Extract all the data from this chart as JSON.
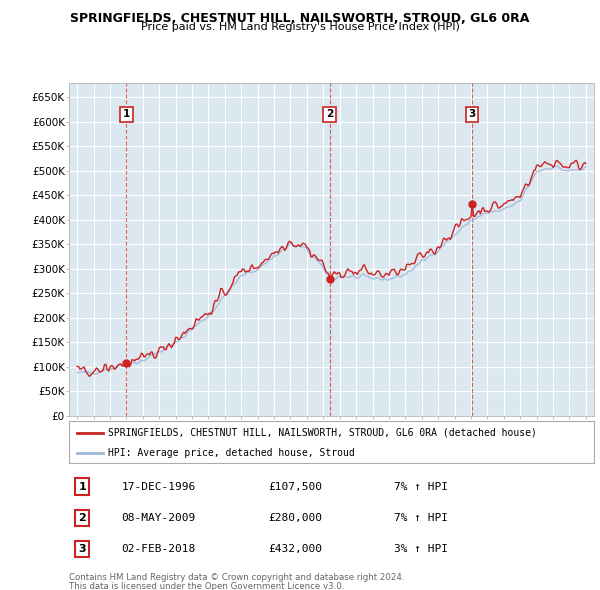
{
  "title": "SPRINGFIELDS, CHESTNUT HILL, NAILSWORTH, STROUD, GL6 0RA",
  "subtitle": "Price paid vs. HM Land Registry's House Price Index (HPI)",
  "legend_label_red": "SPRINGFIELDS, CHESTNUT HILL, NAILSWORTH, STROUD, GL6 0RA (detached house)",
  "legend_label_blue": "HPI: Average price, detached house, Stroud",
  "footer1": "Contains HM Land Registry data © Crown copyright and database right 2024.",
  "footer2": "This data is licensed under the Open Government Licence v3.0.",
  "transactions": [
    {
      "num": 1,
      "date": "17-DEC-1996",
      "price": "£107,500",
      "hpi": "7% ↑ HPI",
      "x": 1997.0
    },
    {
      "num": 2,
      "date": "08-MAY-2009",
      "price": "£280,000",
      "hpi": "7% ↑ HPI",
      "x": 2009.38
    },
    {
      "num": 3,
      "date": "02-FEB-2018",
      "price": "£432,000",
      "hpi": "3% ↑ HPI",
      "x": 2018.08
    }
  ],
  "ylim": [
    0,
    680000
  ],
  "yticks": [
    0,
    50000,
    100000,
    150000,
    200000,
    250000,
    300000,
    350000,
    400000,
    450000,
    500000,
    550000,
    600000,
    650000
  ],
  "ytick_labels": [
    "£0",
    "£50K",
    "£100K",
    "£150K",
    "£200K",
    "£250K",
    "£300K",
    "£350K",
    "£400K",
    "£450K",
    "£500K",
    "£550K",
    "£600K",
    "£650K"
  ],
  "xlim_start": 1993.5,
  "xlim_end": 2025.5,
  "hpi_color": "#a0b8d8",
  "price_color": "#cc2222",
  "dot_color": "#cc2222",
  "vline_color": "#cc2222",
  "grid_color": "#c8d8e8",
  "bg_color": "#ffffff",
  "chart_bg": "#dce8f0",
  "hpi_data_x": [
    1994.0,
    1994.08,
    1994.17,
    1994.25,
    1994.33,
    1994.42,
    1994.5,
    1994.58,
    1994.67,
    1994.75,
    1994.83,
    1994.92,
    1995.0,
    1995.08,
    1995.17,
    1995.25,
    1995.33,
    1995.42,
    1995.5,
    1995.58,
    1995.67,
    1995.75,
    1995.83,
    1995.92,
    1996.0,
    1996.08,
    1996.17,
    1996.25,
    1996.33,
    1996.42,
    1996.5,
    1996.58,
    1996.67,
    1996.75,
    1996.83,
    1996.92,
    1997.0,
    1997.08,
    1997.17,
    1997.25,
    1997.33,
    1997.42,
    1997.5,
    1997.58,
    1997.67,
    1997.75,
    1997.83,
    1997.92,
    1998.0,
    1998.08,
    1998.17,
    1998.25,
    1998.33,
    1998.42,
    1998.5,
    1998.58,
    1998.67,
    1998.75,
    1998.83,
    1998.92,
    1999.0,
    1999.08,
    1999.17,
    1999.25,
    1999.33,
    1999.42,
    1999.5,
    1999.58,
    1999.67,
    1999.75,
    1999.83,
    1999.92,
    2000.0,
    2000.08,
    2000.17,
    2000.25,
    2000.33,
    2000.42,
    2000.5,
    2000.58,
    2000.67,
    2000.75,
    2000.83,
    2000.92,
    2001.0,
    2001.08,
    2001.17,
    2001.25,
    2001.33,
    2001.42,
    2001.5,
    2001.58,
    2001.67,
    2001.75,
    2001.83,
    2001.92,
    2002.0,
    2002.08,
    2002.17,
    2002.25,
    2002.33,
    2002.42,
    2002.5,
    2002.58,
    2002.67,
    2002.75,
    2002.83,
    2002.92,
    2003.0,
    2003.08,
    2003.17,
    2003.25,
    2003.33,
    2003.42,
    2003.5,
    2003.58,
    2003.67,
    2003.75,
    2003.83,
    2003.92,
    2004.0,
    2004.08,
    2004.17,
    2004.25,
    2004.33,
    2004.42,
    2004.5,
    2004.58,
    2004.67,
    2004.75,
    2004.83,
    2004.92,
    2005.0,
    2005.08,
    2005.17,
    2005.25,
    2005.33,
    2005.42,
    2005.5,
    2005.58,
    2005.67,
    2005.75,
    2005.83,
    2005.92,
    2006.0,
    2006.08,
    2006.17,
    2006.25,
    2006.33,
    2006.42,
    2006.5,
    2006.58,
    2006.67,
    2006.75,
    2006.83,
    2006.92,
    2007.0,
    2007.08,
    2007.17,
    2007.25,
    2007.33,
    2007.42,
    2007.5,
    2007.58,
    2007.67,
    2007.75,
    2007.83,
    2007.92,
    2008.0,
    2008.08,
    2008.17,
    2008.25,
    2008.33,
    2008.42,
    2008.5,
    2008.58,
    2008.67,
    2008.75,
    2008.83,
    2008.92,
    2009.0,
    2009.08,
    2009.17,
    2009.25,
    2009.33,
    2009.42,
    2009.5,
    2009.58,
    2009.67,
    2009.75,
    2009.83,
    2009.92,
    2010.0,
    2010.08,
    2010.17,
    2010.25,
    2010.33,
    2010.42,
    2010.5,
    2010.58,
    2010.67,
    2010.75,
    2010.83,
    2010.92,
    2011.0,
    2011.08,
    2011.17,
    2011.25,
    2011.33,
    2011.42,
    2011.5,
    2011.58,
    2011.67,
    2011.75,
    2011.83,
    2011.92,
    2012.0,
    2012.08,
    2012.17,
    2012.25,
    2012.33,
    2012.42,
    2012.5,
    2012.58,
    2012.67,
    2012.75,
    2012.83,
    2012.92,
    2013.0,
    2013.08,
    2013.17,
    2013.25,
    2013.33,
    2013.42,
    2013.5,
    2013.58,
    2013.67,
    2013.75,
    2013.83,
    2013.92,
    2014.0,
    2014.08,
    2014.17,
    2014.25,
    2014.33,
    2014.42,
    2014.5,
    2014.58,
    2014.67,
    2014.75,
    2014.83,
    2014.92,
    2015.0,
    2015.08,
    2015.17,
    2015.25,
    2015.33,
    2015.42,
    2015.5,
    2015.58,
    2015.67,
    2015.75,
    2015.83,
    2015.92,
    2016.0,
    2016.08,
    2016.17,
    2016.25,
    2016.33,
    2016.42,
    2016.5,
    2016.58,
    2016.67,
    2016.75,
    2016.83,
    2016.92,
    2017.0,
    2017.08,
    2017.17,
    2017.25,
    2017.33,
    2017.42,
    2017.5,
    2017.58,
    2017.67,
    2017.75,
    2017.83,
    2017.92,
    2018.0,
    2018.08,
    2018.17,
    2018.25,
    2018.33,
    2018.42,
    2018.5,
    2018.58,
    2018.67,
    2018.75,
    2018.83,
    2018.92,
    2019.0,
    2019.08,
    2019.17,
    2019.25,
    2019.33,
    2019.42,
    2019.5,
    2019.58,
    2019.67,
    2019.75,
    2019.83,
    2019.92,
    2020.0,
    2020.08,
    2020.17,
    2020.25,
    2020.33,
    2020.42,
    2020.5,
    2020.58,
    2020.67,
    2020.75,
    2020.83,
    2020.92,
    2021.0,
    2021.08,
    2021.17,
    2021.25,
    2021.33,
    2021.42,
    2021.5,
    2021.58,
    2021.67,
    2021.75,
    2021.83,
    2021.92,
    2022.0,
    2022.08,
    2022.17,
    2022.25,
    2022.33,
    2022.42,
    2022.5,
    2022.58,
    2022.67,
    2022.75,
    2022.83,
    2022.92,
    2023.0,
    2023.08,
    2023.17,
    2023.25,
    2023.33,
    2023.42,
    2023.5,
    2023.58,
    2023.67,
    2023.75,
    2023.83,
    2023.92,
    2024.0,
    2024.08,
    2024.17,
    2024.25,
    2024.33,
    2024.42,
    2024.5,
    2024.58,
    2024.67,
    2024.75,
    2024.83,
    2024.92,
    2025.0
  ],
  "price_data_x": [
    1994.0,
    1994.08,
    1994.17,
    1994.25,
    1994.33,
    1994.42,
    1994.5,
    1994.58,
    1994.67,
    1994.75,
    1994.83,
    1994.92,
    1995.0,
    1995.08,
    1995.17,
    1995.25,
    1995.33,
    1995.42,
    1995.5,
    1995.58,
    1995.67,
    1995.75,
    1995.83,
    1995.92,
    1996.0,
    1996.08,
    1996.17,
    1996.25,
    1996.33,
    1996.42,
    1996.5,
    1996.58,
    1996.67,
    1996.75,
    1996.83,
    1996.92,
    1997.0,
    1997.08,
    1997.17,
    1997.25,
    1997.33,
    1997.42,
    1997.5,
    1997.58,
    1997.67,
    1997.75,
    1997.83,
    1997.92,
    1998.0,
    1998.08,
    1998.17,
    1998.25,
    1998.33,
    1998.42,
    1998.5,
    1998.58,
    1998.67,
    1998.75,
    1998.83,
    1998.92,
    1999.0,
    1999.08,
    1999.17,
    1999.25,
    1999.33,
    1999.42,
    1999.5,
    1999.58,
    1999.67,
    1999.75,
    1999.83,
    1999.92,
    2000.0,
    2000.08,
    2000.17,
    2000.25,
    2000.33,
    2000.42,
    2000.5,
    2000.58,
    2000.67,
    2000.75,
    2000.83,
    2000.92,
    2001.0,
    2001.08,
    2001.17,
    2001.25,
    2001.33,
    2001.42,
    2001.5,
    2001.58,
    2001.67,
    2001.75,
    2001.83,
    2001.92,
    2002.0,
    2002.08,
    2002.17,
    2002.25,
    2002.33,
    2002.42,
    2002.5,
    2002.58,
    2002.67,
    2002.75,
    2002.83,
    2002.92,
    2003.0,
    2003.08,
    2003.17,
    2003.25,
    2003.33,
    2003.42,
    2003.5,
    2003.58,
    2003.67,
    2003.75,
    2003.83,
    2003.92,
    2004.0,
    2004.08,
    2004.17,
    2004.25,
    2004.33,
    2004.42,
    2004.5,
    2004.58,
    2004.67,
    2004.75,
    2004.83,
    2004.92,
    2005.0,
    2005.08,
    2005.17,
    2005.25,
    2005.33,
    2005.42,
    2005.5,
    2005.58,
    2005.67,
    2005.75,
    2005.83,
    2005.92,
    2006.0,
    2006.08,
    2006.17,
    2006.25,
    2006.33,
    2006.42,
    2006.5,
    2006.58,
    2006.67,
    2006.75,
    2006.83,
    2006.92,
    2007.0,
    2007.08,
    2007.17,
    2007.25,
    2007.33,
    2007.42,
    2007.5,
    2007.58,
    2007.67,
    2007.75,
    2007.83,
    2007.92,
    2008.0,
    2008.08,
    2008.17,
    2008.25,
    2008.33,
    2008.42,
    2008.5,
    2008.58,
    2008.67,
    2008.75,
    2008.83,
    2008.92,
    2009.0,
    2009.08,
    2009.17,
    2009.25,
    2009.33,
    2009.38,
    2009.5,
    2009.58,
    2009.67,
    2009.75,
    2009.83,
    2009.92,
    2010.0,
    2010.08,
    2010.17,
    2010.25,
    2010.33,
    2010.42,
    2010.5,
    2010.58,
    2010.67,
    2010.75,
    2010.83,
    2010.92,
    2011.0,
    2011.08,
    2011.17,
    2011.25,
    2011.33,
    2011.42,
    2011.5,
    2011.58,
    2011.67,
    2011.75,
    2011.83,
    2011.92,
    2012.0,
    2012.08,
    2012.17,
    2012.25,
    2012.33,
    2012.42,
    2012.5,
    2012.58,
    2012.67,
    2012.75,
    2012.83,
    2012.92,
    2013.0,
    2013.08,
    2013.17,
    2013.25,
    2013.33,
    2013.42,
    2013.5,
    2013.58,
    2013.67,
    2013.75,
    2013.83,
    2013.92,
    2014.0,
    2014.08,
    2014.17,
    2014.25,
    2014.33,
    2014.42,
    2014.5,
    2014.58,
    2014.67,
    2014.75,
    2014.83,
    2014.92,
    2015.0,
    2015.08,
    2015.17,
    2015.25,
    2015.33,
    2015.42,
    2015.5,
    2015.58,
    2015.67,
    2015.75,
    2015.83,
    2015.92,
    2016.0,
    2016.08,
    2016.17,
    2016.25,
    2016.33,
    2016.42,
    2016.5,
    2016.58,
    2016.67,
    2016.75,
    2016.83,
    2016.92,
    2017.0,
    2017.08,
    2017.17,
    2017.25,
    2017.33,
    2017.42,
    2017.5,
    2017.58,
    2017.67,
    2017.75,
    2017.83,
    2017.92,
    2018.0,
    2018.08,
    2018.17,
    2018.25,
    2018.33,
    2018.42,
    2018.5,
    2018.58,
    2018.67,
    2018.75,
    2018.83,
    2018.92,
    2019.0,
    2019.08,
    2019.17,
    2019.25,
    2019.33,
    2019.42,
    2019.5,
    2019.58,
    2019.67,
    2019.75,
    2019.83,
    2019.92,
    2020.0,
    2020.08,
    2020.17,
    2020.25,
    2020.33,
    2020.42,
    2020.5,
    2020.58,
    2020.67,
    2020.75,
    2020.83,
    2020.92,
    2021.0,
    2021.08,
    2021.17,
    2021.25,
    2021.33,
    2021.42,
    2021.5,
    2021.58,
    2021.67,
    2021.75,
    2021.83,
    2021.92,
    2022.0,
    2022.08,
    2022.17,
    2022.25,
    2022.33,
    2022.42,
    2022.5,
    2022.58,
    2022.67,
    2022.75,
    2022.83,
    2022.92,
    2023.0,
    2023.08,
    2023.17,
    2023.25,
    2023.33,
    2023.42,
    2023.5,
    2023.58,
    2023.67,
    2023.75,
    2023.83,
    2023.92,
    2024.0,
    2024.08,
    2024.17,
    2024.25,
    2024.33,
    2024.42,
    2024.5,
    2024.58,
    2024.67,
    2024.75,
    2024.83,
    2024.92,
    2025.0
  ]
}
